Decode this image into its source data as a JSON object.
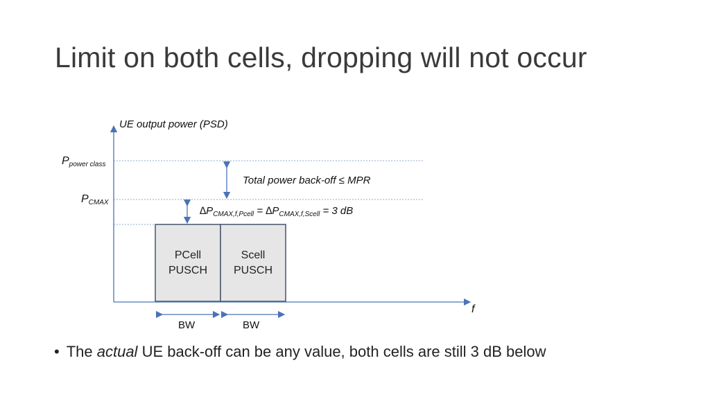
{
  "slide": {
    "title": "Limit on both cells, dropping will not occur"
  },
  "diagram": {
    "y_axis_label": "UE output power (PSD)",
    "x_axis_label": "f",
    "levels": {
      "power_class": {
        "main": "P",
        "sub": "power class"
      },
      "cmax": {
        "main": "P",
        "sub": "CMAX"
      }
    },
    "annotations": {
      "total_backoff": "Total power back-off ≤ MPR",
      "delta": {
        "sym1": "∆P",
        "sub1": "CMAX,f,Pcell",
        "eq1": " = ",
        "sym2": "∆P",
        "sub2": "CMAX,f,Scell",
        "eq2": " = 3 dB"
      }
    },
    "blocks": [
      {
        "line1": "PCell",
        "line2": "PUSCH",
        "bw": "BW"
      },
      {
        "line1": "Scell",
        "line2": "PUSCH",
        "bw": "BW"
      }
    ],
    "colors": {
      "axis": "#4a73b8",
      "dotted": "#8fa7cf",
      "block_fill": "#e6e6e6",
      "block_stroke": "#44546a"
    }
  },
  "bullets": [
    {
      "pre": "The ",
      "emph": "actual",
      "post": " UE back-off can be any value, both cells are still 3 dB below"
    }
  ]
}
